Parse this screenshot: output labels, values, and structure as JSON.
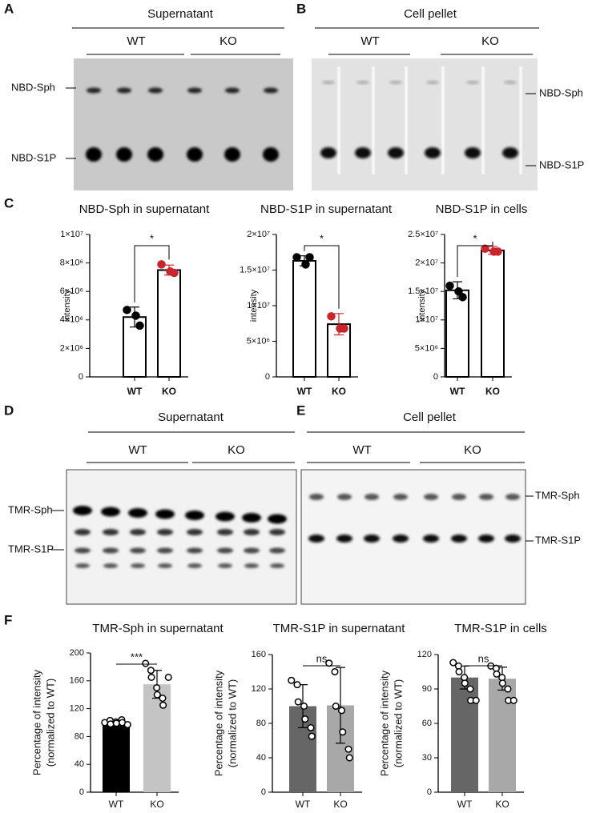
{
  "figure": {
    "panel_labels": [
      "A",
      "B",
      "C",
      "D",
      "E",
      "F"
    ],
    "gels": [
      {
        "title": "Supernatant",
        "groups": [
          "WT",
          "KO"
        ],
        "bands": [
          "NBD-Sph",
          "NBD-S1P"
        ]
      },
      {
        "title": "Cell pellet",
        "groups": [
          "WT",
          "KO"
        ],
        "bands": [
          "NBD-Sph",
          "NBD-S1P"
        ]
      },
      {
        "title": "Supernatant",
        "groups": [
          "WT",
          "KO"
        ],
        "bands": [
          "TMR-Sph",
          "TMR-S1P"
        ]
      },
      {
        "title": "Cell pellet",
        "groups": [
          "WT",
          "KO"
        ],
        "bands": [
          "TMR-Sph",
          "TMR-S1P"
        ]
      }
    ]
  },
  "chart_data": [
    {
      "type": "bar",
      "title": "NBD-Sph in supernatant",
      "ylabel": "intensity",
      "categories": [
        "WT",
        "KO"
      ],
      "values": [
        4200000,
        7500000
      ],
      "errors": [
        700000,
        350000
      ],
      "points": [
        [
          4700000,
          4300000,
          3600000
        ],
        [
          7900000,
          7400000,
          7300000
        ]
      ],
      "bar_colors": [
        "#ffffff",
        "#ffffff"
      ],
      "bar_edge": "#000000",
      "point_colors": [
        "#000000",
        "#c8262c"
      ],
      "point_style": "filled",
      "ylim": [
        0,
        10000000
      ],
      "yticks": [
        0,
        {
          "value": 2000000,
          "label": "2×10⁶"
        },
        {
          "value": 4000000,
          "label": "4×10⁶"
        },
        {
          "value": 6000000,
          "label": "6×10⁶"
        },
        {
          "value": 8000000,
          "label": "8×10⁶"
        },
        {
          "value": 10000000,
          "label": "1×10⁷"
        }
      ],
      "significance": "*"
    },
    {
      "type": "bar",
      "title": "NBD-S1P in supernatant",
      "ylabel": "intensity",
      "categories": [
        "WT",
        "KO"
      ],
      "values": [
        16300000,
        7400000
      ],
      "errors": [
        700000,
        1500000
      ],
      "points": [
        [
          16800000,
          15800000,
          16800000
        ],
        [
          8500000,
          6800000,
          6800000
        ]
      ],
      "bar_colors": [
        "#ffffff",
        "#ffffff"
      ],
      "bar_edge": "#000000",
      "point_colors": [
        "#000000",
        "#c8262c"
      ],
      "point_style": "filled",
      "ylim": [
        0,
        20000000
      ],
      "yticks": [
        0,
        {
          "value": 5000000,
          "label": "5×10⁶"
        },
        {
          "value": 10000000,
          "label": "1×10⁷"
        },
        {
          "value": 15000000,
          "label": "1.5×10⁷"
        },
        {
          "value": 20000000,
          "label": "2×10⁷"
        }
      ],
      "significance": "*"
    },
    {
      "type": "bar",
      "title": "NBD-S1P in cells",
      "ylabel": "intensity",
      "categories": [
        "WT",
        "KO"
      ],
      "values": [
        15200000,
        22200000
      ],
      "errors": [
        1500000,
        700000
      ],
      "points": [
        [
          16000000,
          15000000,
          14000000
        ],
        [
          22500000,
          22000000,
          22000000
        ]
      ],
      "bar_colors": [
        "#ffffff",
        "#ffffff"
      ],
      "bar_edge": "#000000",
      "point_colors": [
        "#000000",
        "#c8262c"
      ],
      "point_style": "filled",
      "ylim": [
        0,
        25000000
      ],
      "yticks": [
        0,
        {
          "value": 5000000,
          "label": "5×10⁶"
        },
        {
          "value": 10000000,
          "label": "1×10⁷"
        },
        {
          "value": 15000000,
          "label": "1.5×10⁷"
        },
        {
          "value": 20000000,
          "label": "2×10⁷"
        },
        {
          "value": 25000000,
          "label": "2.5×10⁷"
        }
      ],
      "significance": "*"
    },
    {
      "type": "bar",
      "title": "TMR-Sph in supernatant",
      "ylabel": [
        "Percentage of intensity",
        "(normalized to WT)"
      ],
      "categories": [
        "WT",
        "KO"
      ],
      "values": [
        100,
        155
      ],
      "errors": [
        3,
        20
      ],
      "points": [
        [
          100,
          103,
          98,
          101,
          99,
          104,
          100,
          97
        ],
        [
          185,
          175,
          165,
          150,
          140,
          135,
          125,
          165
        ]
      ],
      "bar_colors": [
        "#000000",
        "#c4c4c4"
      ],
      "point_colors": [
        "#000000",
        "#000000"
      ],
      "point_style": "open",
      "ylim": [
        0,
        200
      ],
      "yticks": [
        0,
        40,
        80,
        120,
        160,
        200
      ],
      "significance": "***"
    },
    {
      "type": "bar",
      "title": "TMR-S1P in supernatant",
      "ylabel": [
        "Percentage of intensity",
        "(normalized to WT)"
      ],
      "categories": [
        "WT",
        "KO"
      ],
      "values": [
        100,
        101
      ],
      "errors": [
        25,
        44
      ],
      "points": [
        [
          130,
          125,
          105,
          100,
          85,
          75,
          65
        ],
        [
          150,
          140,
          100,
          95,
          70,
          50,
          40
        ]
      ],
      "bar_colors": [
        "#666666",
        "#a8a8a8"
      ],
      "point_colors": [
        "#000000",
        "#000000"
      ],
      "point_style": "open",
      "ylim": [
        0,
        160
      ],
      "yticks": [
        0,
        40,
        80,
        120,
        160
      ],
      "significance": "ns"
    },
    {
      "type": "bar",
      "title": "TMR-S1P in cells",
      "ylabel": [
        "Percentage of intensity",
        "(normalized to WT)"
      ],
      "categories": [
        "WT",
        "KO"
      ],
      "values": [
        100,
        99
      ],
      "errors": [
        10,
        10
      ],
      "points": [
        [
          113,
          110,
          105,
          100,
          95,
          90,
          80,
          80
        ],
        [
          110,
          108,
          103,
          100,
          95,
          90,
          80,
          80
        ]
      ],
      "bar_colors": [
        "#666666",
        "#a8a8a8"
      ],
      "point_colors": [
        "#000000",
        "#000000"
      ],
      "point_style": "open",
      "ylim": [
        0,
        120
      ],
      "yticks": [
        0,
        30,
        60,
        90,
        120
      ],
      "significance": "ns"
    }
  ]
}
